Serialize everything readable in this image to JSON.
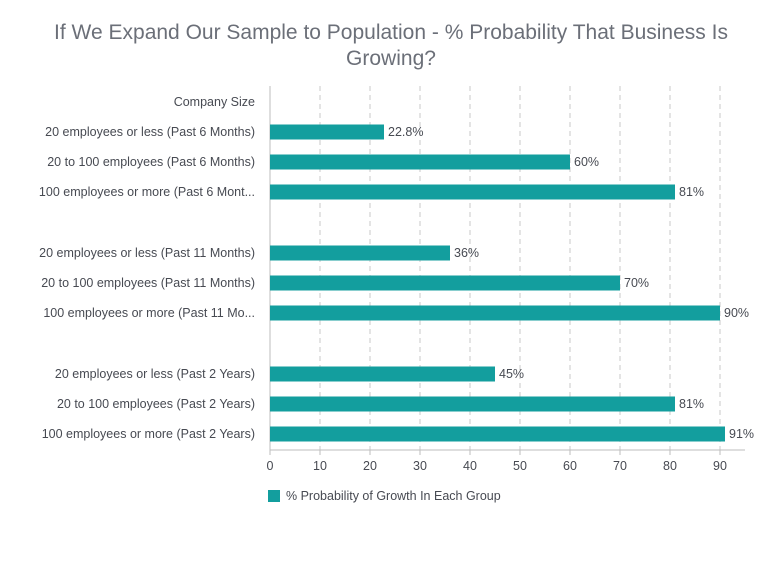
{
  "chart_data": {
    "type": "bar",
    "orientation": "horizontal",
    "title": "If We Expand Our Sample to Population - % Probability That Business Is Growing?",
    "y_header": "Company Size",
    "categories": [
      "20 employees or less (Past 6 Months)",
      "20 to 100 employees (Past 6 Months)",
      "100 employees or more (Past 6 Mont...",
      "20 employees or less (Past 11 Months)",
      "20 to 100 employees (Past 11 Months)",
      "100 employees or more (Past 11 Mo...",
      "20 employees or less (Past 2 Years)",
      "20 to 100 employees (Past 2 Years)",
      "100 employees or more (Past 2 Years)"
    ],
    "series": [
      {
        "name": "% Probability of Growth In Each Group",
        "values": [
          22.8,
          60,
          81,
          36,
          70,
          90,
          45,
          81,
          91
        ],
        "labels": [
          "22.8%",
          "60%",
          "81%",
          "36%",
          "70%",
          "90%",
          "45%",
          "81%",
          "91%"
        ],
        "color": "#139e9e"
      }
    ],
    "xlim": [
      0,
      95
    ],
    "xticks": [
      0,
      10,
      20,
      30,
      40,
      50,
      60,
      70,
      80,
      90
    ],
    "grid": true,
    "legend_position": "bottom-left"
  }
}
